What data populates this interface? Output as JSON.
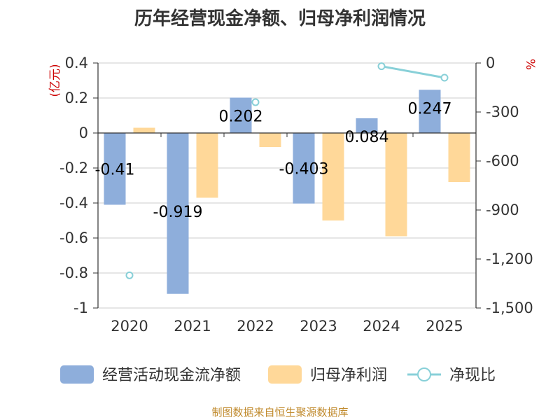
{
  "chart_data": {
    "type": "bar",
    "title": "历年经营现金净额、归母净利润情况",
    "categories": [
      "2020",
      "2021",
      "2022",
      "2023",
      "2024",
      "2025"
    ],
    "series": [
      {
        "name": "经营活动现金流净额",
        "type": "bar",
        "axis": "left",
        "color": "#8eaedb",
        "values": [
          -0.41,
          -0.919,
          0.202,
          -0.403,
          0.084,
          0.247
        ],
        "labels": [
          "-0.41",
          "-0.919",
          "0.202",
          "-0.403",
          "0.084",
          "0.247"
        ]
      },
      {
        "name": "归母净利润",
        "type": "bar",
        "axis": "left",
        "color": "#ffd899",
        "values": [
          0.03,
          -0.37,
          -0.08,
          -0.5,
          -0.59,
          -0.28
        ]
      },
      {
        "name": "净现比",
        "type": "line",
        "axis": "right",
        "color": "#88d0d8",
        "values": [
          -1300,
          null,
          -240,
          null,
          -20,
          -90
        ]
      }
    ],
    "y_left": {
      "label": "(亿元)",
      "min": -1,
      "max": 0.4,
      "ticks": [
        "0.4",
        "0.2",
        "0",
        "-0.2",
        "-0.4",
        "-0.6",
        "-0.8",
        "-1"
      ]
    },
    "y_right": {
      "label": "%",
      "min": -1500,
      "max": 0,
      "ticks": [
        "0",
        "-300",
        "-600",
        "-900",
        "-1,200",
        "-1,500"
      ]
    },
    "legend": [
      "经营活动现金流净额",
      "归母净利润",
      "净现比"
    ],
    "source": "制图数据来自恒生聚源数据库"
  }
}
